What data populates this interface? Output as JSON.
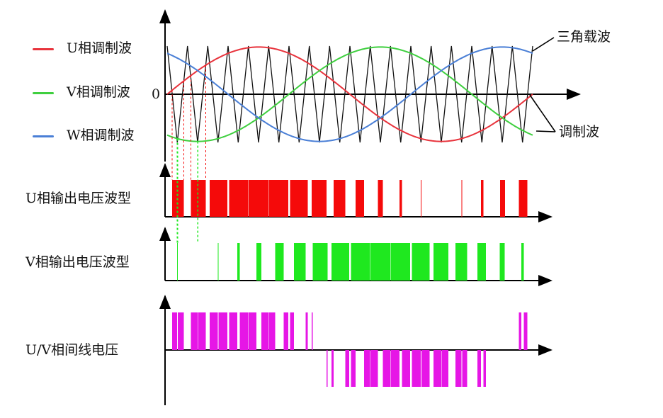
{
  "legend": [
    {
      "label": "U相调制波",
      "color": "#e8333c"
    },
    {
      "label": "V相调制波",
      "color": "#3fcf3f"
    },
    {
      "label": "W相调制波",
      "color": "#4a7fd6"
    }
  ],
  "labels": {
    "zero": "0",
    "carrier": "三角载波",
    "modulating": "调制波",
    "u_output": "U相输出电压波型",
    "v_output": "V相输出电压波型",
    "uv_line": "U/V相间线电压"
  },
  "colors": {
    "u": "#f50a0a",
    "v": "#1fe81f",
    "uv": "#e616e6",
    "carrier": "#111111",
    "axis": "#000000"
  },
  "carrier_periods": 18
}
